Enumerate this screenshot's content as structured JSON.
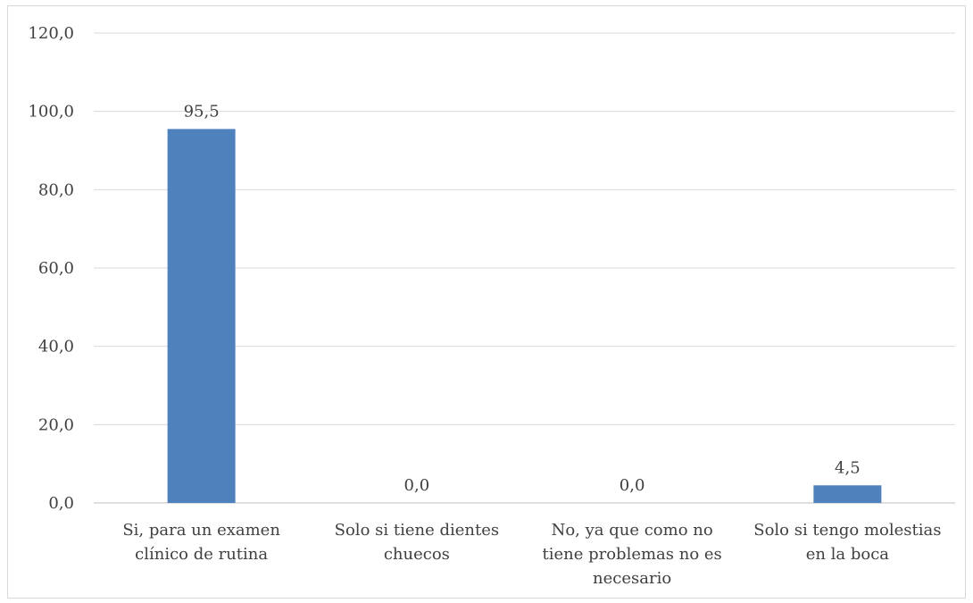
{
  "chart_data": {
    "type": "bar",
    "categories": [
      [
        "Si, para un examen",
        "clínico de rutina"
      ],
      [
        "Solo si tiene dientes",
        "chuecos"
      ],
      [
        "No, ya que como no",
        "tiene problemas no es",
        "necesario"
      ],
      [
        "Solo si tengo molestias",
        "en la boca"
      ]
    ],
    "values": [
      95.5,
      0.0,
      0.0,
      4.5
    ],
    "data_labels": [
      "95,5",
      "0,0",
      "0,0",
      "4,5"
    ],
    "ylim": [
      0,
      120
    ],
    "yticks": [
      0,
      20,
      40,
      60,
      80,
      100,
      120
    ],
    "ytick_labels": [
      "0,0",
      "20,0",
      "40,0",
      "60,0",
      "80,0",
      "100,0",
      "120,0"
    ],
    "title": "",
    "xlabel": "",
    "ylabel": "",
    "grid": true,
    "legend": "none",
    "colors": {
      "bar": "#4f81bd",
      "grid": "#d9d9d9",
      "axis": "#bfbfbf",
      "text": "#404040"
    }
  }
}
